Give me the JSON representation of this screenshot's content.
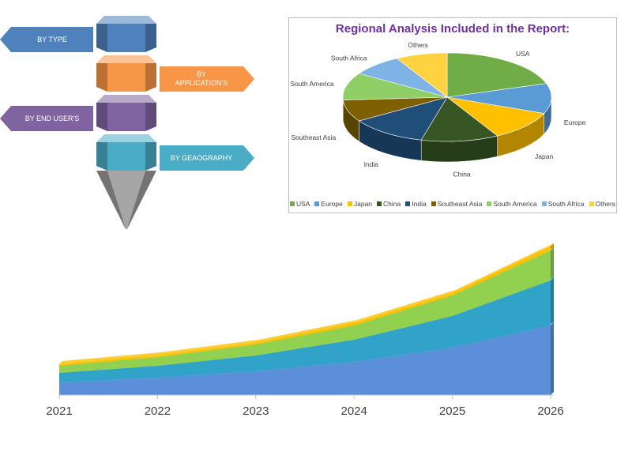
{
  "infographic": {
    "segments": [
      {
        "label": "BY  TYPE",
        "color": "#4f81bd",
        "side": "left"
      },
      {
        "label": "BY APPLICATION'S",
        "color": "#f79646",
        "side": "right"
      },
      {
        "label": "BY END USER'S",
        "color": "#8064a2",
        "side": "left"
      },
      {
        "label": "BY GEAOGRAPHY",
        "color": "#4bacc6",
        "side": "right"
      }
    ],
    "tip_color": "#a6a6a6"
  },
  "chart_data": [
    {
      "type": "pie",
      "title": "Regional Analysis Included in the Report:",
      "categories": [
        "USA",
        "Europe",
        "Japan",
        "China",
        "India",
        "Southeast Asia",
        "South America",
        "South Africa",
        "Others"
      ],
      "values": [
        20,
        11,
        11,
        12,
        12,
        8,
        10,
        8,
        8
      ],
      "colors": [
        "#70ad47",
        "#5b9bd5",
        "#ffc000",
        "#375623",
        "#1f4e79",
        "#7f6000",
        "#8fce65",
        "#7fb2e5",
        "#ffd23f"
      ],
      "legend": "bottom",
      "style": "3d"
    },
    {
      "type": "area",
      "stacked": true,
      "x": [
        "2021",
        "2022",
        "2023",
        "2024",
        "2025",
        "2026"
      ],
      "series": [
        {
          "values": [
            16,
            22,
            30,
            42,
            60,
            88
          ],
          "color": "#5b8fd9"
        },
        {
          "values": [
            12,
            15,
            20,
            28,
            40,
            57
          ],
          "color": "#31a3c9"
        },
        {
          "values": [
            9,
            11,
            14,
            18,
            26,
            38
          ],
          "color": "#92d050"
        },
        {
          "values": [
            2,
            2,
            2,
            3,
            3,
            5
          ],
          "color": "#ffc000"
        }
      ],
      "ylim": [
        0,
        190
      ],
      "grid": false,
      "style": "3d"
    }
  ]
}
